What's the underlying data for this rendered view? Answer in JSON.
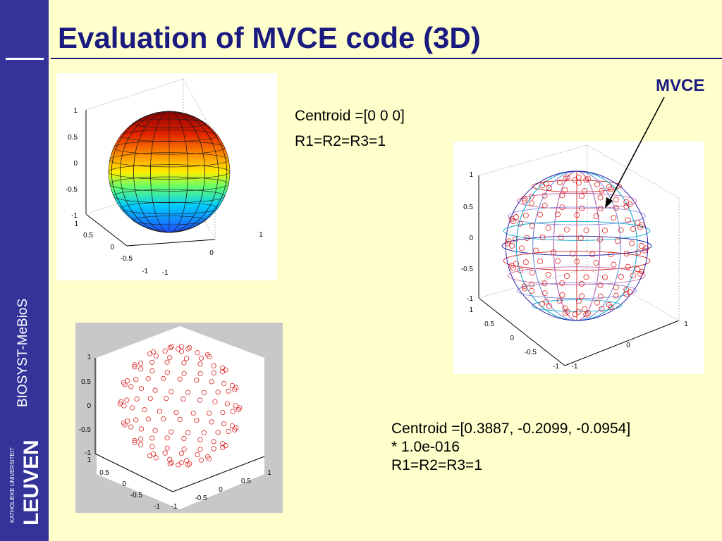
{
  "slide": {
    "title": "Evaluation of MVCE code (3D)",
    "sidebar_label": "BIOSYST-MeBioS",
    "logo": {
      "line1": "KATHOLIEKE UNIVERSITEIT",
      "line2": "LEUVEN"
    }
  },
  "results_top": {
    "centroid_line": "Centroid  =[0 0 0]",
    "radii_line": "R1=R2=R3=1"
  },
  "results_bottom": {
    "centroid_line": "Centroid  =[0.3887, -0.2099, -0.0954]",
    "scale_line": "* 1.0e-016",
    "radii_line": "R1=R2=R3=1"
  },
  "annotation": {
    "label": "MVCE"
  },
  "plots": {
    "surface": {
      "z_ticks": [
        "1",
        "0.5",
        "0",
        "-0.5",
        "-1"
      ],
      "y_ticks": [
        "1",
        "0.5",
        "0",
        "-0.5",
        "-1"
      ],
      "x_ticks": [
        "-1",
        "0",
        "1"
      ]
    },
    "points": {
      "z_ticks": [
        "1",
        "0.5",
        "0",
        "-0.5",
        "-1"
      ],
      "y_ticks": [
        "1",
        "0.5",
        "0",
        "-0.5",
        "-1"
      ],
      "x_ticks": [
        "-1",
        "-0.5",
        "0",
        "0.5",
        "1"
      ]
    },
    "mvce": {
      "z_ticks": [
        "1",
        "0.5",
        "0",
        "-0.5",
        "-1"
      ],
      "y_ticks": [
        "1",
        "0.5",
        "0",
        "-0.5",
        "-1"
      ],
      "x_ticks": [
        "-1",
        "0",
        "1"
      ]
    }
  },
  "colors": {
    "background": "#ffffcc",
    "sidebar": "#333399",
    "title": "#1a1a80",
    "points": "#dd2222"
  }
}
